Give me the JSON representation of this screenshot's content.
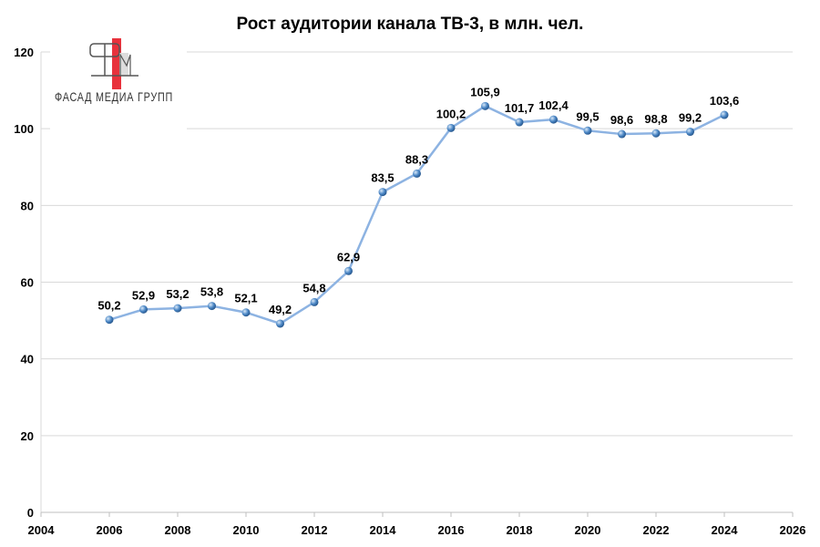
{
  "chart_data": {
    "type": "line",
    "title": "Рост аудитории канала ТВ-3, в млн. чел.",
    "xlabel": "",
    "ylabel": "",
    "xlim": [
      2004,
      2026
    ],
    "ylim": [
      0,
      120
    ],
    "x_ticks": [
      2004,
      2006,
      2008,
      2010,
      2012,
      2014,
      2016,
      2018,
      2020,
      2022,
      2024,
      2026
    ],
    "y_ticks": [
      0,
      20,
      40,
      60,
      80,
      100,
      120
    ],
    "grid": true,
    "legend": "none",
    "x": [
      2006,
      2007,
      2008,
      2009,
      2010,
      2011,
      2012,
      2013,
      2014,
      2015,
      2016,
      2017,
      2018,
      2019,
      2020,
      2021,
      2022,
      2023,
      2024
    ],
    "values": [
      50.2,
      52.9,
      53.2,
      53.8,
      52.1,
      49.2,
      54.8,
      62.9,
      83.5,
      88.3,
      100.2,
      105.9,
      101.7,
      102.4,
      99.5,
      98.6,
      98.8,
      99.2,
      103.6
    ],
    "data_labels": [
      "50,2",
      "52,9",
      "53,2",
      "53,8",
      "52,1",
      "49,2",
      "54,8",
      "62,9",
      "83,5",
      "88,3",
      "100,2",
      "105,9",
      "101,7",
      "102,4",
      "99,5",
      "98,6",
      "98,8",
      "99,2",
      "103,6"
    ],
    "line_color": "#8db3e2",
    "marker_color": "#4a86c5"
  },
  "logo": {
    "text": "ФАСАД МЕДИА ГРУПП",
    "accent": "#e8323c"
  }
}
